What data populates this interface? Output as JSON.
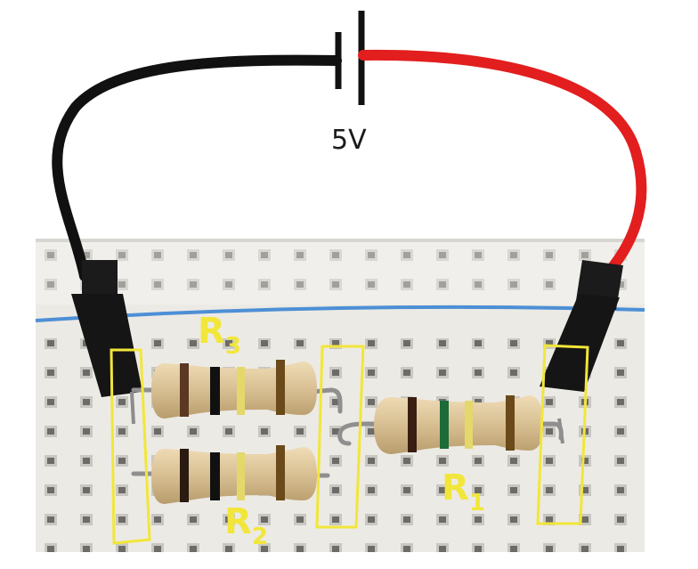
{
  "source": {
    "voltage": "5V"
  },
  "resistors": [
    {
      "id": "R3",
      "letter": "R",
      "subscript": "3"
    },
    {
      "id": "R2",
      "letter": "R",
      "subscript": "2"
    },
    {
      "id": "R1",
      "letter": "R",
      "subscript": "1"
    }
  ],
  "colors": {
    "highlight": "#f2e63a",
    "negative_wire": "#111111",
    "positive_wire": "#e21e1e",
    "breadboard": "#eceae5",
    "resistor_body": "#d9c196"
  }
}
